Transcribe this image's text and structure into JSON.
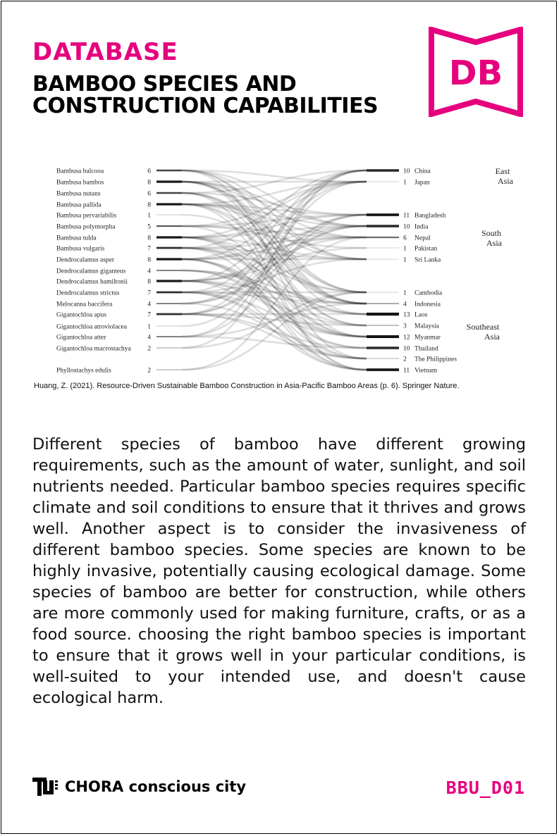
{
  "header": {
    "kicker": "DATABASE",
    "title": "BAMBOO SPECIES AND CONSTRUCTION CAPABILITIES",
    "logo_text": "DB"
  },
  "diagram": {
    "species": [
      {
        "name": "Bambusa balcooa",
        "count": "6"
      },
      {
        "name": "Bambusa bambos",
        "count": "8"
      },
      {
        "name": "Bambusa nutans",
        "count": "6"
      },
      {
        "name": "Bambusa pallida",
        "count": "8"
      },
      {
        "name": "Bambusa pervariabilis",
        "count": "1"
      },
      {
        "name": "Bambusa polymorpha",
        "count": "5"
      },
      {
        "name": "Bambusa tulda",
        "count": "8"
      },
      {
        "name": "Bambusa vulgaris",
        "count": "7"
      },
      {
        "name": "Dendrocalamus asper",
        "count": "8"
      },
      {
        "name": "Dendrocalamus giganteus",
        "count": "4"
      },
      {
        "name": "Dendrocalamus hamiltonii",
        "count": "8"
      },
      {
        "name": "Dendrocalamus strictus",
        "count": "7"
      },
      {
        "name": "Melocanna baccifera",
        "count": "4"
      },
      {
        "name": "Gigantochloa apus",
        "count": "7"
      },
      {
        "name": "Gigantochloa atroviolacea",
        "count": "1"
      },
      {
        "name": "Gigantochloa atter",
        "count": "4"
      },
      {
        "name": "Gigantochloa macrostachya",
        "count": "2"
      },
      {
        "name": "Phyllostachys edulis",
        "count": "2"
      }
    ],
    "countries": [
      {
        "name": "China",
        "count": "10"
      },
      {
        "name": "Japan",
        "count": "1"
      },
      {
        "name": "Bangladesh",
        "count": "11"
      },
      {
        "name": "India",
        "count": "10"
      },
      {
        "name": "Nepal",
        "count": "6"
      },
      {
        "name": "Pakistan",
        "count": "1"
      },
      {
        "name": "Sri Lanka",
        "count": "1"
      },
      {
        "name": "Cambodia",
        "count": "1"
      },
      {
        "name": "Indonesia",
        "count": "4"
      },
      {
        "name": "Laos",
        "count": "13"
      },
      {
        "name": "Malaysia",
        "count": "3"
      },
      {
        "name": "Myanmar",
        "count": "12"
      },
      {
        "name": "Thailand",
        "count": "10"
      },
      {
        "name": "The Philippines",
        "count": "2"
      },
      {
        "name": "Vietnam",
        "count": "11"
      }
    ],
    "regions": [
      {
        "line1": "East",
        "line2": "Asia"
      },
      {
        "line1": "South",
        "line2": "Asia"
      },
      {
        "line1": "Southeast",
        "line2": "Asia"
      }
    ]
  },
  "caption": "Huang, Z. (2021). Resource-Driven Sustainable Bamboo Construction in Asia-Pacific Bamboo Areas (p. 6). Springer Nature.",
  "body_text": "Different species of bamboo have different growing requirements, such as the amount of water, sunlight, and soil nutrients needed. Particular bamboo species requires specific climate and soil conditions to ensure that it thrives and grows well. Another aspect is to consider the invasiveness of different bamboo species. Some species are known to be highly invasive, potentially causing ecological damage. Some species of bamboo are better for construction, while others are more commonly used for making furniture, crafts, or as a food source.  choosing the right bamboo species is important to ensure that it grows well in your particular conditions, is well-suited to your intended use, and doesn't cause ecological harm.",
  "footer": {
    "brand": "CHORA conscious city",
    "code": "BBU_D01"
  },
  "colors": {
    "accent": "#e6007e",
    "text": "#111111"
  }
}
